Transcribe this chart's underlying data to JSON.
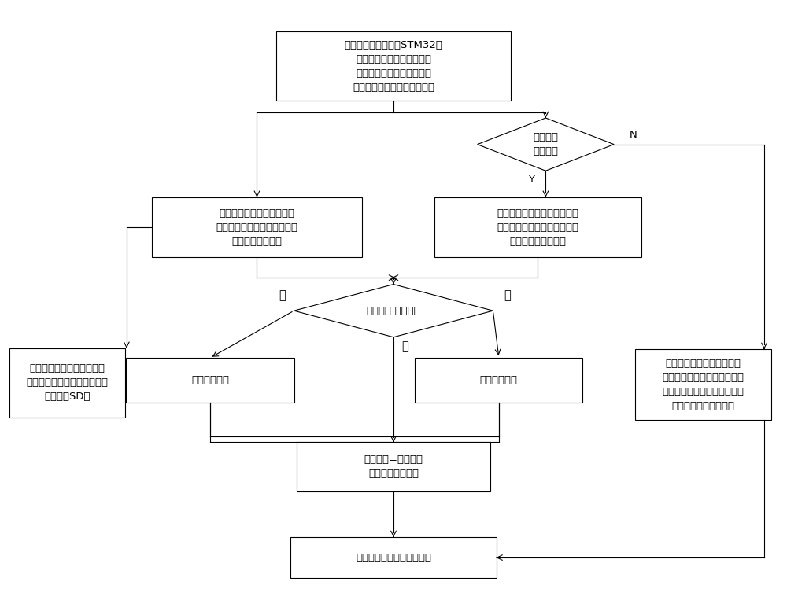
{
  "bg_color": "#ffffff",
  "line_color": "#000000",
  "font_size": 9.5,
  "start_text": "用户安装、投运基于STM32的\n埋地长输管道阴极保护装置\n后，按下装置前面板启动按\n键，开启设备（运行灯亮起）",
  "decision1_text": "按键切换\n是否自动",
  "box_left_text": "装置开始采集阴极保护参数\n（输出电压、输出电流、参比\n电位、管道温度）",
  "box_right_text": "自动状态灯亮起，用户通过上\n位机软件，设定合适的阴极保\n护电位（给定电位）",
  "decision2_text": "参比电位-给定电位",
  "box_increase_text": "增大电压输出",
  "box_decrease_text": "减小电压输出",
  "box_store_text": "存储阴极保护参数（输出电\n压、输电流、参比电位、管道\n温度）到SD卡",
  "box_manual_text": "通过手动旋钮调整电压输出\n（增大或减小电压输出），从\n而实现参比电位至合适的阴极\n保护电位（给定电位）",
  "box_equal_text": "参比电位=给定电位\n电压输出保持恒定",
  "box_final_text": "埋地长输管道得到防腐保护",
  "label_N": "N",
  "label_Y": "Y",
  "label_pos": "正",
  "label_neg": "负",
  "label_zero": "零"
}
